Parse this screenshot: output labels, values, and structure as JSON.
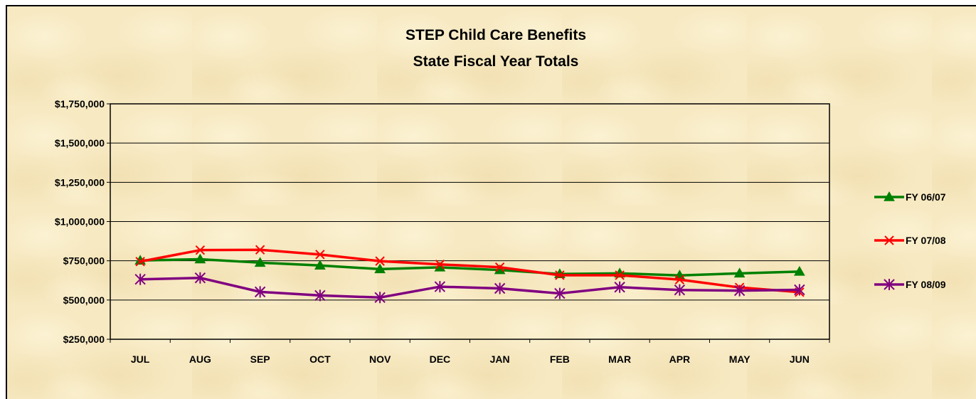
{
  "chart_data": {
    "type": "line",
    "title": "STEP Child Care Benefits",
    "subtitle": "State Fiscal Year Totals",
    "xlabel": "",
    "ylabel": "",
    "categories": [
      "JUL",
      "AUG",
      "SEP",
      "OCT",
      "NOV",
      "DEC",
      "JAN",
      "FEB",
      "MAR",
      "APR",
      "MAY",
      "JUN"
    ],
    "ylim": [
      250000,
      1750000
    ],
    "y_ticks": [
      250000,
      500000,
      750000,
      1000000,
      1250000,
      1500000,
      1750000
    ],
    "y_tick_labels": [
      "$250,000",
      "$500,000",
      "$750,000",
      "$1,000,000",
      "$1,250,000",
      "$1,500,000",
      "$1,750,000"
    ],
    "grid": true,
    "legend_position": "right",
    "series": [
      {
        "name": "FY 06/07",
        "color": "#008000",
        "marker": "triangle",
        "values": [
          752000,
          760000,
          738000,
          720000,
          697000,
          708000,
          691000,
          666000,
          670000,
          657000,
          670000,
          681000
        ]
      },
      {
        "name": "FY 07/08",
        "color": "#ff0000",
        "marker": "x",
        "values": [
          745000,
          818000,
          820000,
          790000,
          748000,
          727000,
          709000,
          658000,
          658000,
          630000,
          580000,
          550000
        ]
      },
      {
        "name": "FY 08/09",
        "color": "#800080",
        "marker": "star",
        "values": [
          632000,
          641000,
          552000,
          529000,
          516000,
          585000,
          574000,
          542000,
          582000,
          564000,
          560000,
          565000
        ]
      }
    ]
  }
}
